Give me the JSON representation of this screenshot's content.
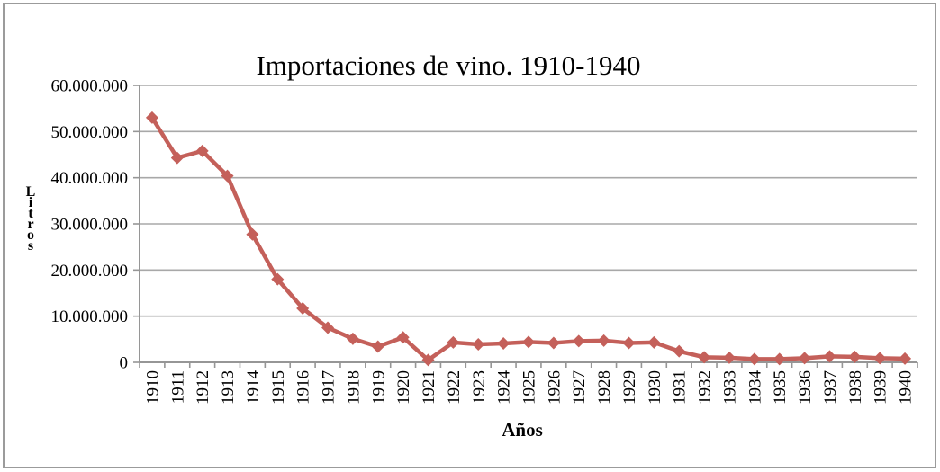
{
  "figure": {
    "background": "#FFFFFF",
    "frame_border_color": "#9B9B9B"
  },
  "chart_data": {
    "type": "line",
    "title": "Importaciones de vino. 1910-1940",
    "xlabel": "Años",
    "ylabel": "Litros",
    "ylabel_stacked_vertically": true,
    "categories": [
      "1910",
      "1911",
      "1912",
      "1913",
      "1914",
      "1915",
      "1916",
      "1917",
      "1918",
      "1919",
      "1920",
      "1921",
      "1922",
      "1923",
      "1924",
      "1925",
      "1926",
      "1927",
      "1928",
      "1929",
      "1930",
      "1931",
      "1932",
      "1933",
      "1934",
      "1935",
      "1936",
      "1937",
      "1938",
      "1939",
      "1940"
    ],
    "values": [
      53000000,
      44300000,
      45800000,
      40400000,
      27700000,
      18000000,
      11700000,
      7500000,
      5100000,
      3400000,
      5400000,
      500000,
      4300000,
      3900000,
      4100000,
      4400000,
      4200000,
      4600000,
      4700000,
      4200000,
      4300000,
      2400000,
      1100000,
      1000000,
      700000,
      700000,
      900000,
      1300000,
      1200000,
      900000,
      800000
    ],
    "ylim": [
      0,
      60000000
    ],
    "ytick_step": 10000000,
    "ytick_labels": [
      "0",
      "10.000.000",
      "20.000.000",
      "30.000.000",
      "40.000.000",
      "50.000.000",
      "60.000.000"
    ],
    "grid": "horizontal",
    "legend": "none",
    "marker": "diamond",
    "series_color": "#C4605A",
    "grid_color": "#A8A8A8",
    "axis_color": "#969696"
  }
}
